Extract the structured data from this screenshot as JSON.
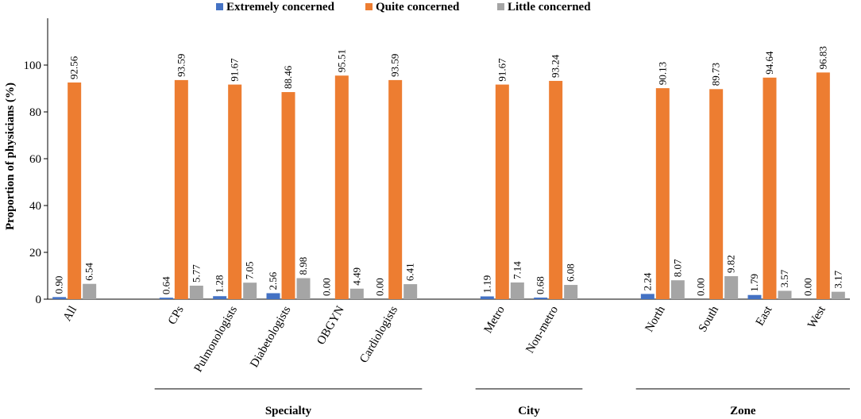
{
  "chart_data": {
    "type": "bar",
    "title": "",
    "ylabel": "Proportion of physicians (%)",
    "xlabel": "",
    "ylim": [
      0,
      120
    ],
    "yticks": [
      0,
      20,
      40,
      60,
      80,
      100
    ],
    "grid": false,
    "legend_position": "top",
    "categories": [
      "All",
      "CPs",
      "Pulmonologists",
      "Diabetologists",
      "OBGYN",
      "Cardiologists",
      "Metro",
      "Non-metro",
      "North",
      "South",
      "East",
      "West"
    ],
    "slots": [
      0,
      2,
      3,
      4,
      5,
      6,
      8,
      9,
      11,
      12,
      13,
      14
    ],
    "slot_count": 15,
    "series": [
      {
        "name": "Extremely concerned",
        "color": "#4472C4",
        "values": [
          0.9,
          0.64,
          1.28,
          2.56,
          0.0,
          0.0,
          1.19,
          0.68,
          2.24,
          0.0,
          1.79,
          0.0
        ],
        "labels": [
          "0.90",
          "0.64",
          "1.28",
          "2.56",
          "0.00",
          "0.00",
          "1.19",
          "0.68",
          "2.24",
          "0.00",
          "1.79",
          "0.00"
        ]
      },
      {
        "name": "Quite concerned",
        "color": "#ED7D31",
        "values": [
          92.56,
          93.59,
          91.67,
          88.46,
          95.51,
          93.59,
          91.67,
          93.24,
          90.13,
          89.73,
          94.64,
          96.83
        ],
        "labels": [
          "92.56",
          "93.59",
          "91.67",
          "88.46",
          "95.51",
          "93.59",
          "91.67",
          "93.24",
          "90.13",
          "89.73",
          "94.64",
          "96.83"
        ]
      },
      {
        "name": "Little concerned",
        "color": "#A5A5A5",
        "values": [
          6.54,
          5.77,
          7.05,
          8.98,
          4.49,
          6.41,
          7.14,
          6.08,
          8.07,
          9.82,
          3.57,
          3.17
        ],
        "labels": [
          "6.54",
          "5.77",
          "7.05",
          "8.98",
          "4.49",
          "6.41",
          "7.14",
          "6.08",
          "8.07",
          "9.82",
          "3.57",
          "3.17"
        ]
      }
    ],
    "groups": [
      {
        "label": "Specialty",
        "from": 2,
        "to": 6
      },
      {
        "label": "City",
        "from": 8,
        "to": 9
      },
      {
        "label": "Zone",
        "from": 11,
        "to": 14
      }
    ]
  }
}
